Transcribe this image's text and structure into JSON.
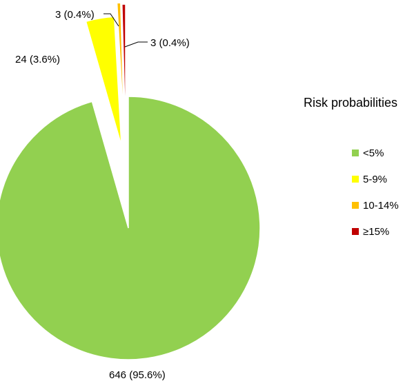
{
  "chart_data": {
    "type": "pie",
    "title": "",
    "legend": {
      "title": "Risk probabilities",
      "placement": "right"
    },
    "exploded": true,
    "slices": [
      {
        "name": "<5%",
        "value": 646,
        "percent": 95.6,
        "label": "646 (95.6%)",
        "color": "#92D050"
      },
      {
        "name": "5-9%",
        "value": 24,
        "percent": 3.6,
        "label": "24 (3.6%)",
        "color": "#FFFF00"
      },
      {
        "name": "10-14%",
        "value": 3,
        "percent": 0.4,
        "label": "3 (0.4%)",
        "color": "#FFC000"
      },
      {
        "name": "≥15%",
        "value": 3,
        "percent": 0.4,
        "label": "3 (0.4%)",
        "color": "#C00000"
      }
    ]
  }
}
